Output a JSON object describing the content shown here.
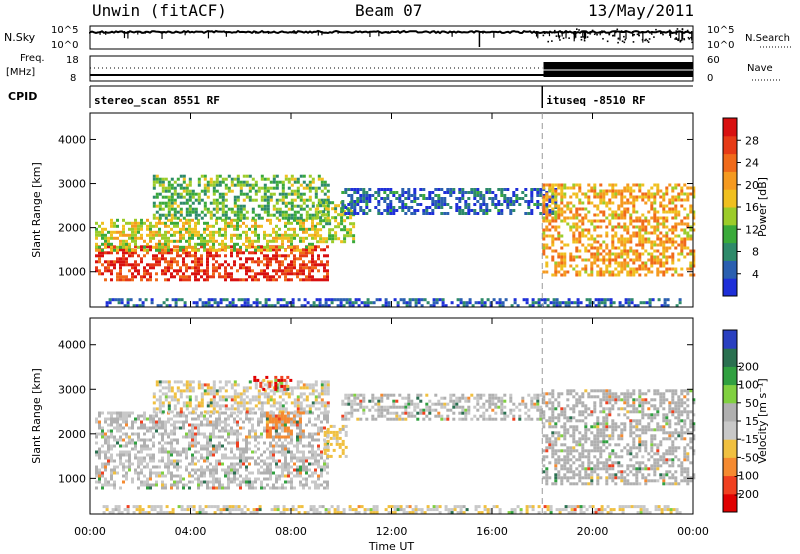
{
  "header": {
    "station": "Unwin (fitACF)",
    "beam": "Beam 07",
    "date": "13/May/2011"
  },
  "strip": {
    "nsky_label": "N.Sky",
    "nsky_ticks": [
      "10^5",
      "10^0"
    ],
    "nsearch_label": "N.Search",
    "freq_label_1": "Freq.",
    "freq_label_2": "[MHz]",
    "freq_ticks": [
      "18",
      "8"
    ],
    "nave_ticks": [
      "60",
      "0"
    ],
    "nave_label": "Nave",
    "cpid_label": "CPID",
    "cpid_segments": [
      {
        "text": "stereo_scan 8551 RF",
        "start_hour": 0,
        "end_hour": 18
      },
      {
        "text": "ituseq -8510 RF",
        "start_hour": 18,
        "end_hour": 24
      }
    ]
  },
  "colors": {
    "power_scale": [
      "#1e2fd8",
      "#2a5fb0",
      "#2e8a6a",
      "#3aaa3a",
      "#9ccc2a",
      "#f0c020",
      "#f59a20",
      "#f06a1a",
      "#e63a16",
      "#d81010"
    ],
    "velocity_scale": [
      "#e00000",
      "#f04020",
      "#f58a30",
      "#f0c040",
      "#c8c8c8",
      "#b0b0b0",
      "#80d040",
      "#30a040",
      "#2a7050",
      "#2a40c0"
    ]
  },
  "chart_data": [
    {
      "type": "heatmap",
      "panel": "power",
      "ylabel": "Slant Range [km]",
      "yticks": [
        1000,
        2000,
        3000,
        4000
      ],
      "ylim": [
        200,
        4600
      ],
      "xticks": [
        "00:00",
        "04:00",
        "08:00",
        "12:00",
        "16:00",
        "20:00",
        "00:00"
      ],
      "xlim_hours": [
        0,
        24
      ],
      "colorbar_label": "Power [dB]",
      "colorbar_ticks": [
        4,
        8,
        12,
        16,
        20,
        24,
        28
      ],
      "colorbar_range": [
        0,
        32
      ],
      "regions": [
        {
          "x0": 0.2,
          "x1": 9.5,
          "y0": 800,
          "y1": 1600,
          "value": 28
        },
        {
          "x0": 0.2,
          "x1": 9.0,
          "y0": 1500,
          "y1": 2200,
          "value": 16
        },
        {
          "x0": 2.5,
          "x1": 9.5,
          "y0": 2200,
          "y1": 3200,
          "value": 12
        },
        {
          "x0": 9.0,
          "x1": 10.5,
          "y0": 1700,
          "y1": 2600,
          "value": 14
        },
        {
          "x0": 10.0,
          "x1": 18.5,
          "y0": 2300,
          "y1": 2900,
          "value": 5
        },
        {
          "x0": 18.0,
          "x1": 24.0,
          "y0": 900,
          "y1": 3000,
          "value": 20
        },
        {
          "x0": 0.5,
          "x1": 23.5,
          "y0": 250,
          "y1": 400,
          "value": 4
        }
      ]
    },
    {
      "type": "heatmap",
      "panel": "velocity",
      "ylabel": "Slant Range [km]",
      "yticks": [
        1000,
        2000,
        3000,
        4000
      ],
      "ylim": [
        200,
        4600
      ],
      "xticks": [
        "00:00",
        "04:00",
        "08:00",
        "12:00",
        "16:00",
        "20:00",
        "00:00"
      ],
      "xlim_hours": [
        0,
        24
      ],
      "xlabel": "Time UT",
      "colorbar_label": "Velocity [m s⁻¹]",
      "colorbar_ticks": [
        -200,
        -100,
        -50,
        -15,
        15,
        50,
        100,
        200
      ],
      "colorbar_range": [
        -250,
        250
      ],
      "regions": [
        {
          "x0": 0.2,
          "x1": 9.5,
          "y0": 800,
          "y1": 2500,
          "value": 0
        },
        {
          "x0": 2.5,
          "x1": 9.5,
          "y0": 2500,
          "y1": 3200,
          "value": -40
        },
        {
          "x0": 6.5,
          "x1": 8.0,
          "y0": 3000,
          "y1": 3300,
          "value": -200
        },
        {
          "x0": 7.0,
          "x1": 8.5,
          "y0": 1900,
          "y1": 2500,
          "value": -120
        },
        {
          "x0": 9.3,
          "x1": 10.2,
          "y0": 1500,
          "y1": 2200,
          "value": -60
        },
        {
          "x0": 10.0,
          "x1": 18.0,
          "y0": 2300,
          "y1": 2900,
          "value": 5
        },
        {
          "x0": 18.0,
          "x1": 24.0,
          "y0": 900,
          "y1": 3000,
          "value": 20
        },
        {
          "x0": 0.5,
          "x1": 23.5,
          "y0": 250,
          "y1": 400,
          "value": -40
        }
      ]
    }
  ]
}
